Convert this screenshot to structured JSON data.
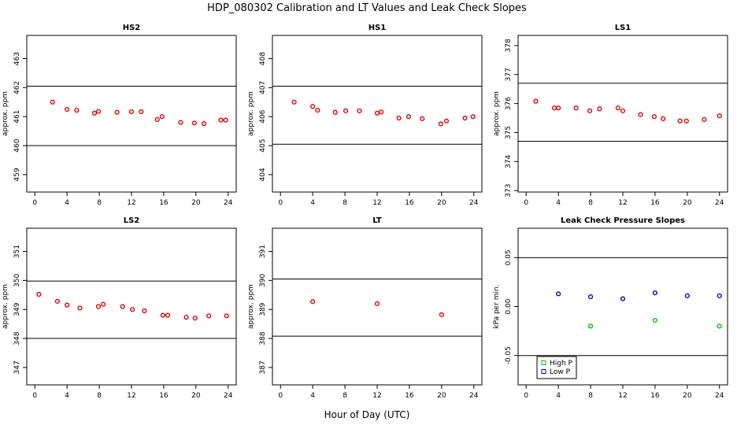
{
  "title": "HDP_080302  Calibration and LT Values and Leak Check Slopes",
  "xlabel": "Hour of Day (UTC)",
  "colors": {
    "red": "#e00000",
    "green": "#00c000",
    "blue": "#0000cc",
    "axis": "#000000"
  },
  "chart_data": [
    {
      "id": "hs2",
      "type": "scatter",
      "title": "HS2",
      "ylabel": "approx. ppm",
      "xlim": [
        -1,
        25
      ],
      "ylim": [
        458.4,
        463.8
      ],
      "xticks": [
        0,
        4,
        8,
        12,
        16,
        20,
        24
      ],
      "yticks": [
        459,
        460,
        461,
        462,
        463
      ],
      "hlines": [
        462.05,
        460.0
      ],
      "series": [
        {
          "color": "red",
          "marker": "circle",
          "x": [
            2.2,
            4.0,
            5.2,
            7.4,
            7.9,
            10.2,
            12.0,
            13.2,
            15.2,
            15.8,
            18.1,
            19.8,
            21.0,
            23.1,
            23.7
          ],
          "y": [
            461.5,
            461.25,
            461.22,
            461.12,
            461.18,
            461.15,
            461.17,
            461.17,
            460.9,
            461.0,
            460.8,
            460.78,
            460.76,
            460.88,
            460.88
          ]
        }
      ]
    },
    {
      "id": "hs1",
      "type": "scatter",
      "title": "HS1",
      "ylabel": "approx. ppm",
      "xlim": [
        -1,
        25
      ],
      "ylim": [
        403.4,
        408.8
      ],
      "xticks": [
        0,
        4,
        8,
        12,
        16,
        20,
        24
      ],
      "yticks": [
        404,
        405,
        406,
        407,
        408
      ],
      "hlines": [
        407.05,
        405.05
      ],
      "series": [
        {
          "color": "red",
          "marker": "circle",
          "x": [
            1.7,
            4.0,
            4.6,
            6.8,
            8.1,
            9.8,
            12.0,
            12.5,
            14.7,
            15.9,
            17.6,
            19.9,
            20.6,
            22.9,
            23.9
          ],
          "y": [
            406.5,
            406.35,
            406.22,
            406.15,
            406.2,
            406.2,
            406.12,
            406.16,
            405.95,
            406.0,
            405.93,
            405.75,
            405.85,
            405.95,
            406.0
          ]
        }
      ]
    },
    {
      "id": "ls1",
      "type": "scatter",
      "title": "LS1",
      "ylabel": "approx. ppm",
      "xlim": [
        -1,
        25
      ],
      "ylim": [
        372.95,
        378.35
      ],
      "xticks": [
        0,
        4,
        8,
        12,
        16,
        20,
        24
      ],
      "yticks": [
        373,
        374,
        375,
        376,
        377,
        378
      ],
      "hlines": [
        376.7,
        374.7
      ],
      "series": [
        {
          "color": "red",
          "marker": "circle",
          "x": [
            1.2,
            3.5,
            4.0,
            6.2,
            7.9,
            9.1,
            11.4,
            12.0,
            14.2,
            15.9,
            17.0,
            19.1,
            19.9,
            22.1,
            24.0
          ],
          "y": [
            376.08,
            375.85,
            375.85,
            375.85,
            375.75,
            375.82,
            375.85,
            375.75,
            375.62,
            375.55,
            375.48,
            375.4,
            375.4,
            375.45,
            375.58
          ]
        }
      ]
    },
    {
      "id": "ls2",
      "type": "scatter",
      "title": "LS2",
      "ylabel": "approx. ppm",
      "xlim": [
        -1,
        25
      ],
      "ylim": [
        346.4,
        351.8
      ],
      "xticks": [
        0,
        4,
        8,
        12,
        16,
        20,
        24
      ],
      "yticks": [
        347,
        348,
        349,
        350,
        351
      ],
      "hlines": [
        349.98,
        348.0
      ],
      "series": [
        {
          "color": "red",
          "marker": "circle",
          "x": [
            0.5,
            2.8,
            4.0,
            5.6,
            7.9,
            8.5,
            10.9,
            12.1,
            13.6,
            15.9,
            16.5,
            18.8,
            19.9,
            21.6,
            23.8
          ],
          "y": [
            349.52,
            349.28,
            349.15,
            349.05,
            349.1,
            349.18,
            349.1,
            349.0,
            348.95,
            348.8,
            348.8,
            348.73,
            348.7,
            348.78,
            348.78
          ]
        }
      ]
    },
    {
      "id": "lt",
      "type": "scatter",
      "title": "LT",
      "ylabel": "approx. ppm",
      "xlim": [
        -1,
        25
      ],
      "ylim": [
        386.4,
        391.8
      ],
      "xticks": [
        0,
        4,
        8,
        12,
        16,
        20,
        24
      ],
      "yticks": [
        387,
        388,
        389,
        390,
        391
      ],
      "hlines": [
        390.05,
        388.08
      ],
      "series": [
        {
          "color": "red",
          "marker": "circle",
          "x": [
            4.0,
            12.0,
            20.0
          ],
          "y": [
            389.27,
            389.2,
            388.82
          ]
        }
      ]
    },
    {
      "id": "leak",
      "type": "scatter",
      "title": "Leak Check Pressure Slopes",
      "ylabel": "kPa per min.",
      "xlim": [
        -1,
        25
      ],
      "ylim": [
        -0.08,
        0.08
      ],
      "xticks": [
        0,
        4,
        8,
        12,
        16,
        20,
        24
      ],
      "yticks": [
        -0.05,
        0.0,
        0.05
      ],
      "ytick_labels": [
        "-0.05",
        "0.00",
        "0.05"
      ],
      "hlines": [
        0.05,
        -0.05
      ],
      "legend": {
        "position": "bottom-left",
        "entries": [
          {
            "label": "High P",
            "color": "green"
          },
          {
            "label": "Low P",
            "color": "blue"
          }
        ]
      },
      "series": [
        {
          "name": "High P",
          "color": "green",
          "marker": "circle",
          "x": [
            8.0,
            16.0,
            24.0
          ],
          "y": [
            -0.02,
            -0.014,
            -0.02
          ]
        },
        {
          "name": "Low P",
          "color": "blue",
          "marker": "circle",
          "x": [
            4.0,
            8.0,
            12.0,
            16.0,
            20.0,
            24.0
          ],
          "y": [
            0.013,
            0.01,
            0.008,
            0.014,
            0.011,
            0.011
          ]
        }
      ]
    }
  ]
}
